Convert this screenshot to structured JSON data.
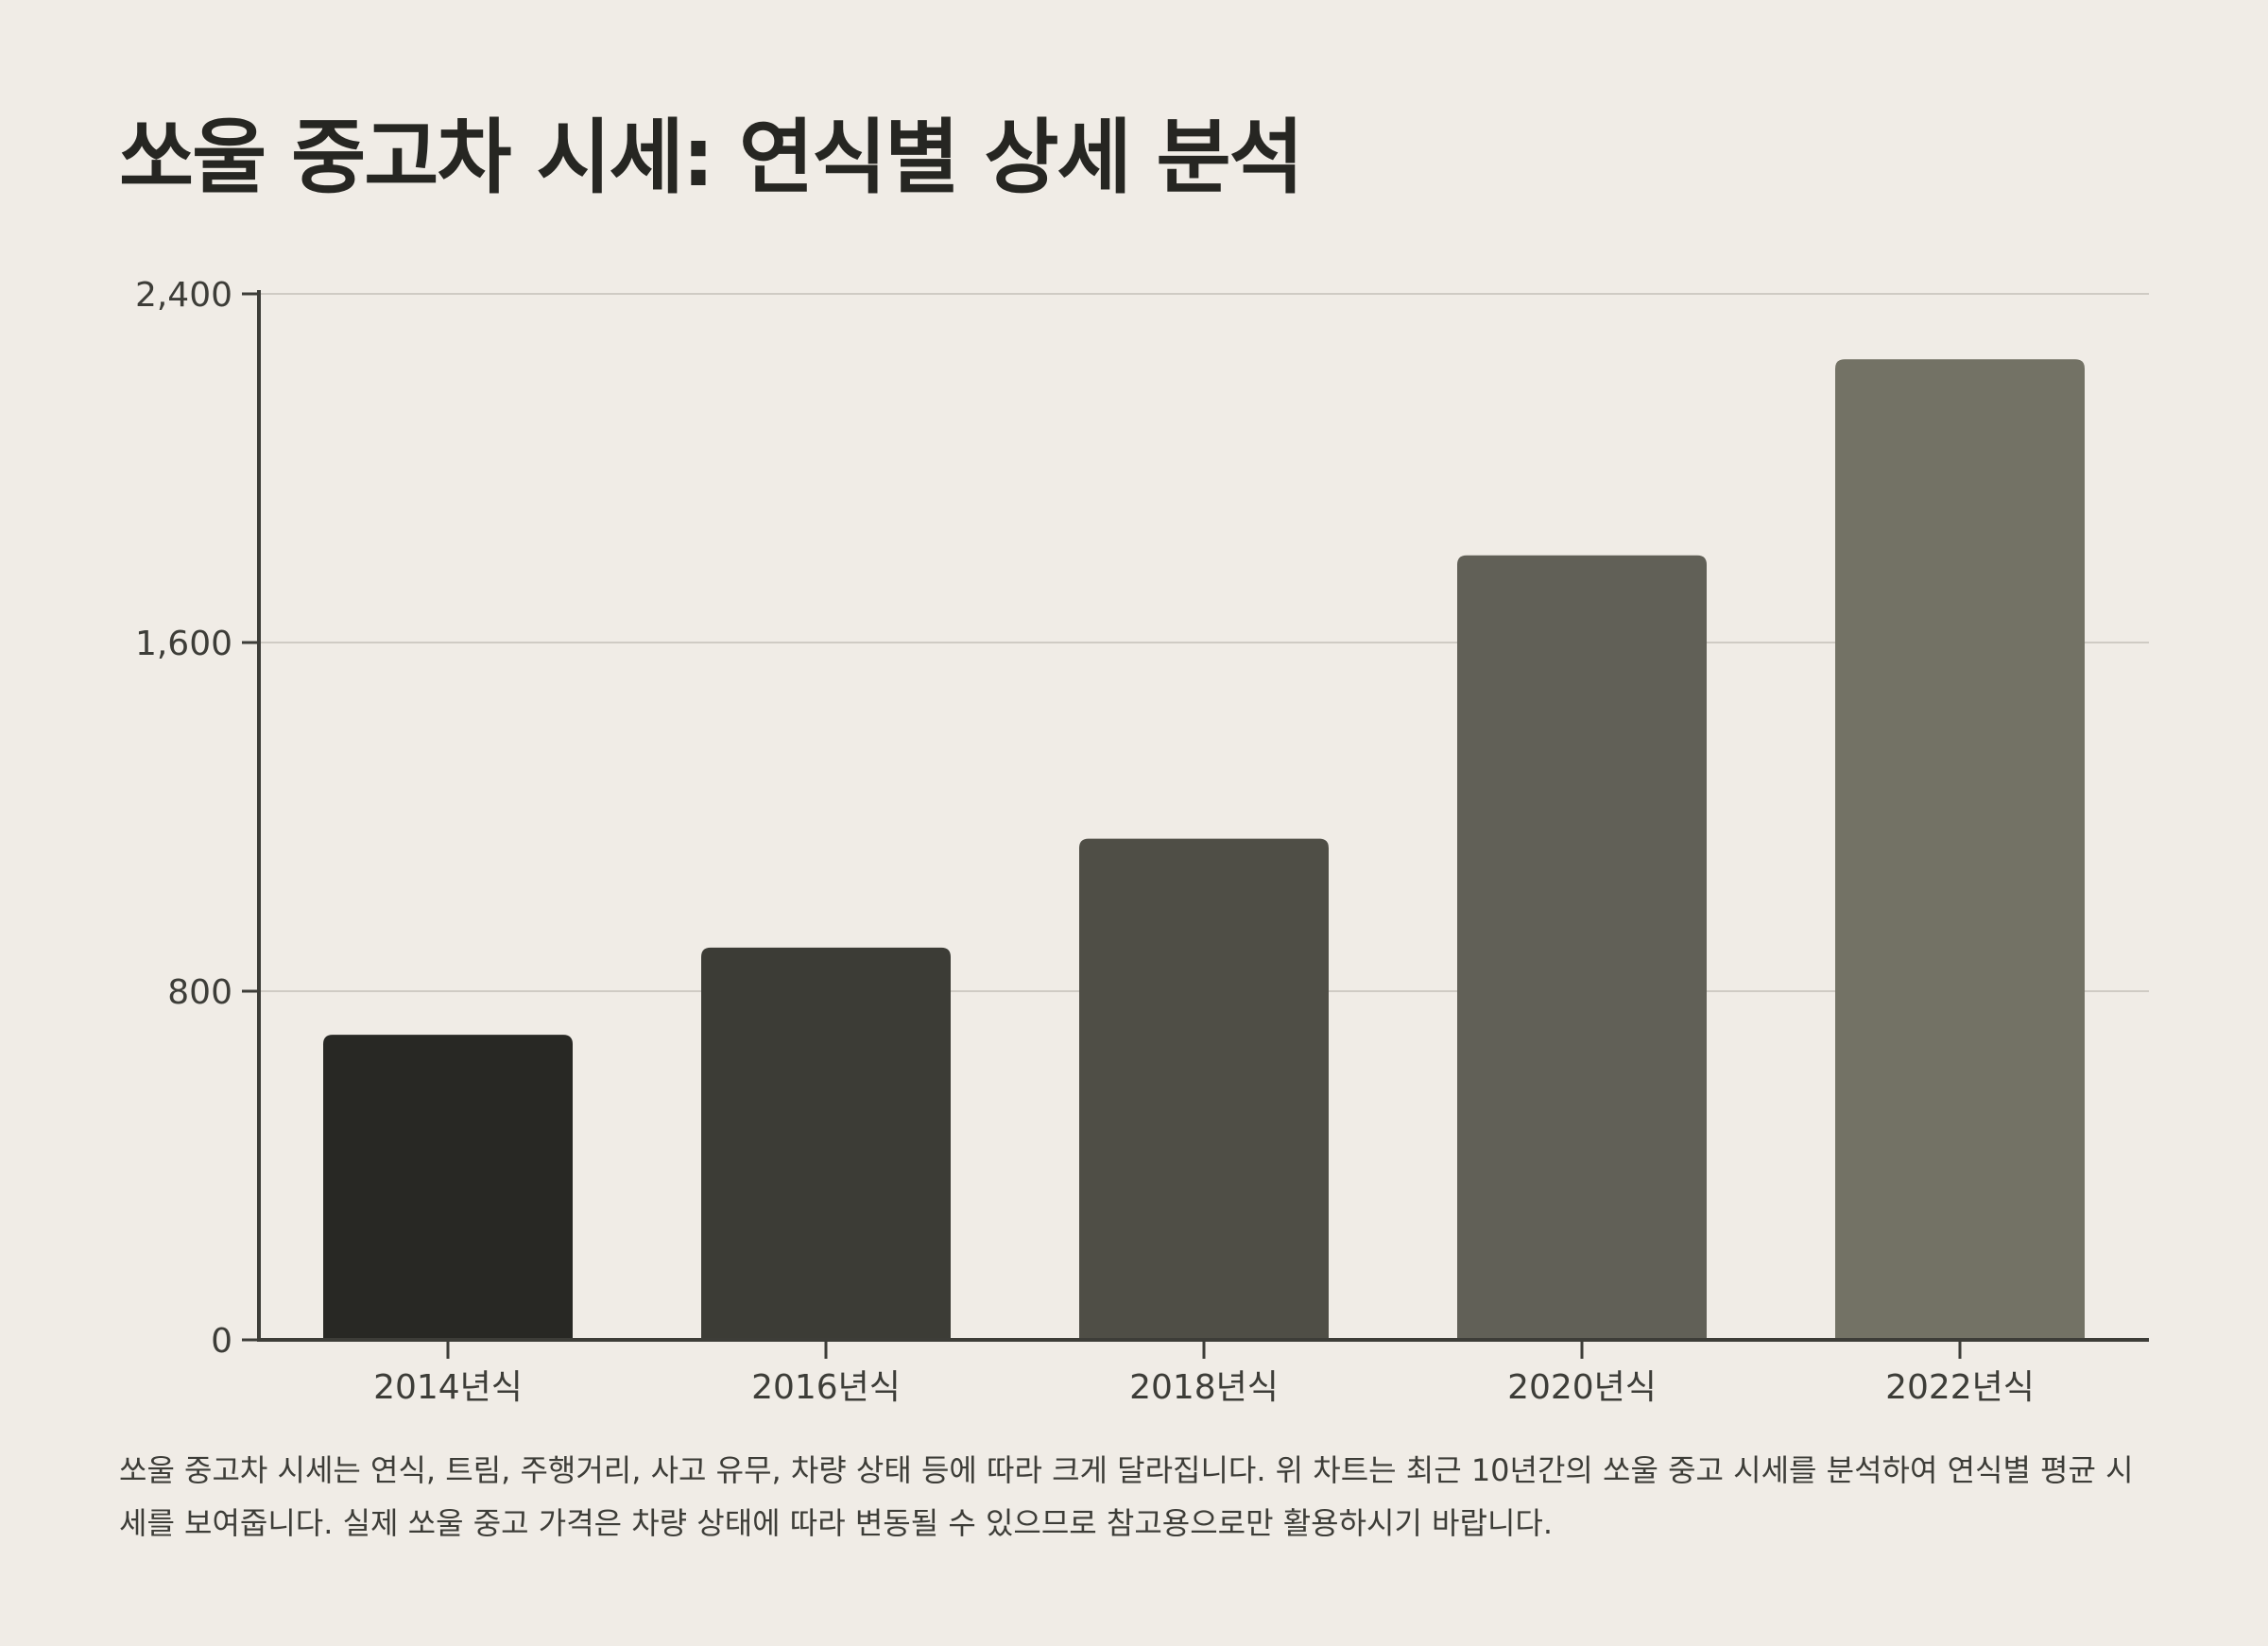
{
  "page": {
    "title": "쏘울 중고차 시세: 연식별 상세 분석",
    "caption": "쏘울 중고차 시세는 연식, 트림, 주행거리, 사고 유무, 차량 상태 등에 따라 크게 달라집니다. 위 차트는 최근 10년간의 쏘울 중고 시세를 분석하여 연식별 평균 시세를 보여줍니다. 실제 쏘울 중고 가격은 차량 상태에 따라 변동될 수 있으므로 참고용으로만 활용하시기 바랍니다."
  },
  "chart_data": {
    "type": "bar",
    "title": "쏘울 중고차 시세: 연식별 상세 분석",
    "xlabel": "",
    "ylabel": "",
    "categories": [
      "2014년식",
      "2016년식",
      "2018년식",
      "2020년식",
      "2022년식"
    ],
    "values": [
      700,
      900,
      1150,
      1800,
      2250
    ],
    "ylim": [
      0,
      2400
    ],
    "yticks": [
      0,
      800,
      1600,
      2400
    ],
    "ytick_labels": [
      "0",
      "800",
      "1,600",
      "2,400"
    ],
    "grid": true,
    "legend": "none",
    "colors": [
      "#282824",
      "#3c3c36",
      "#4f4e46",
      "#616057",
      "#737265"
    ]
  }
}
